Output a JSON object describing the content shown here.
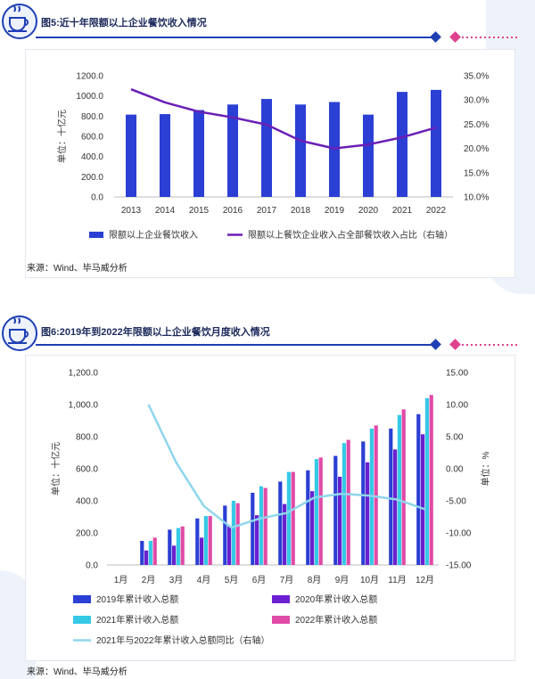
{
  "figure5": {
    "title": "图5:近十年限额以上企业餐饮收入情况",
    "source": "来源：Wind、毕马威分析",
    "colors": {
      "bar": "#2b3fd4",
      "line": "#6a1fb6",
      "accent": "#1f3fb5",
      "pink": "#e0418f"
    },
    "chart_data": {
      "type": "bar+line",
      "categories": [
        "2013",
        "2014",
        "2015",
        "2016",
        "2017",
        "2018",
        "2019",
        "2020",
        "2021",
        "2022"
      ],
      "series": [
        {
          "name": "限额以上企业餐饮收入",
          "type": "bar",
          "axis": "left",
          "values": [
            815,
            820,
            860,
            915,
            970,
            915,
            940,
            815,
            1040,
            1060
          ]
        },
        {
          "name": "限额以上餐饮企业收入占全部餐饮收入占比（右轴）",
          "type": "line",
          "axis": "right",
          "values": [
            32.2,
            29.5,
            27.6,
            26.4,
            24.9,
            21.6,
            20.0,
            20.8,
            22.3,
            24.3
          ]
        }
      ],
      "ylabel": "单位：十亿元",
      "ylim": [
        0,
        1200
      ],
      "y_ticks": [
        "0.0",
        "200.0",
        "400.0",
        "600.0",
        "800.0",
        "1000.0",
        "1200.0"
      ],
      "y2lim": [
        10,
        35
      ],
      "y2_ticks": [
        "10.0%",
        "15.0%",
        "20.0%",
        "25.0%",
        "30.0%",
        "35.0%"
      ],
      "legend_position": "bottom"
    }
  },
  "figure6": {
    "title": "图6:2019年到2022年限额以上企业餐饮月度收入情况",
    "source": "来源：Wind、毕马威分析",
    "colors": {
      "s2019": "#2b3fd4",
      "s2020": "#6a1fd0",
      "s2021": "#35c9e6",
      "s2022": "#e04aa7",
      "line": "#8fd6ec"
    },
    "chart_data": {
      "type": "bar+line",
      "categories": [
        "1月",
        "2月",
        "3月",
        "4月",
        "5月",
        "6月",
        "7月",
        "8月",
        "9月",
        "10月",
        "11月",
        "12月"
      ],
      "series": [
        {
          "name": "2019年累计收入总额",
          "type": "bar",
          "axis": "left",
          "values": [
            null,
            150,
            220,
            290,
            370,
            450,
            520,
            590,
            680,
            770,
            850,
            940
          ]
        },
        {
          "name": "2020年累计收入总额",
          "type": "bar",
          "axis": "left",
          "values": [
            null,
            90,
            120,
            170,
            240,
            310,
            380,
            460,
            550,
            640,
            720,
            815
          ]
        },
        {
          "name": "2021年累计收入总额",
          "type": "bar",
          "axis": "left",
          "values": [
            null,
            150,
            230,
            305,
            400,
            490,
            580,
            660,
            760,
            850,
            935,
            1040
          ]
        },
        {
          "name": "2022年累计收入总额",
          "type": "bar",
          "axis": "left",
          "values": [
            null,
            170,
            240,
            305,
            385,
            480,
            580,
            670,
            780,
            870,
            970,
            1060
          ]
        },
        {
          "name": "2021年与2022年累计收入总额同比（右轴）",
          "type": "line",
          "axis": "right",
          "values": [
            null,
            10.0,
            1.0,
            -5.8,
            -9.2,
            -7.8,
            -6.9,
            -4.5,
            -3.9,
            -4.2,
            -4.8,
            -6.3
          ]
        }
      ],
      "ylabel": "单位：十亿元",
      "ylim": [
        0,
        1200
      ],
      "y_ticks": [
        "0.0",
        "200.0",
        "400.0",
        "600.0",
        "800.0",
        "1,000.0",
        "1,200.0"
      ],
      "y2label": "单位：%",
      "y2lim": [
        -15,
        15
      ],
      "y2_ticks": [
        "-15.00",
        "-10.00",
        "-5.00",
        "0.00",
        "5.00",
        "10.00",
        "15.00"
      ],
      "legend_position": "bottom"
    }
  }
}
